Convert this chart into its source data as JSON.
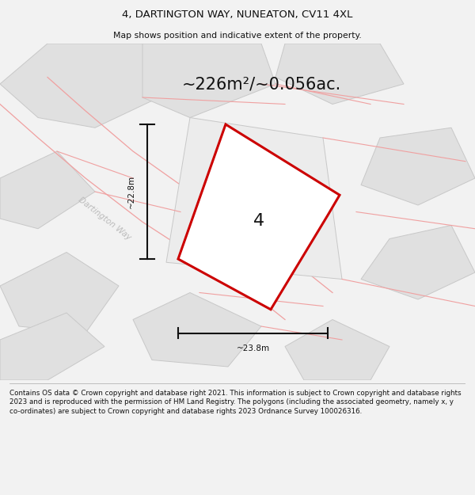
{
  "title_line1": "4, DARTINGTON WAY, NUNEATON, CV11 4XL",
  "title_line2": "Map shows position and indicative extent of the property.",
  "area_text": "~226m²/~0.056ac.",
  "label_number": "4",
  "dim_horizontal": "~23.8m",
  "dim_vertical": "~22.8m",
  "street_label": "Dartington Way",
  "footer_text": "Contains OS data © Crown copyright and database right 2021. This information is subject to Crown copyright and database rights 2023 and is reproduced with the permission of HM Land Registry. The polygons (including the associated geometry, namely x, y co-ordinates) are subject to Crown copyright and database rights 2023 Ordnance Survey 100026316.",
  "bg_color": "#f2f2f2",
  "map_bg": "#f8f8f8",
  "plot_fill": "#ffffff",
  "plot_edge": "#cc0000",
  "road_edge": "#f0a0a0",
  "building_fill": "#e0e0e0",
  "building_edge": "#c8c8c8",
  "dim_color": "#111111",
  "title_color": "#111111",
  "footer_color": "#111111",
  "street_label_color": "#bbbbbb",
  "area_color": "#111111"
}
